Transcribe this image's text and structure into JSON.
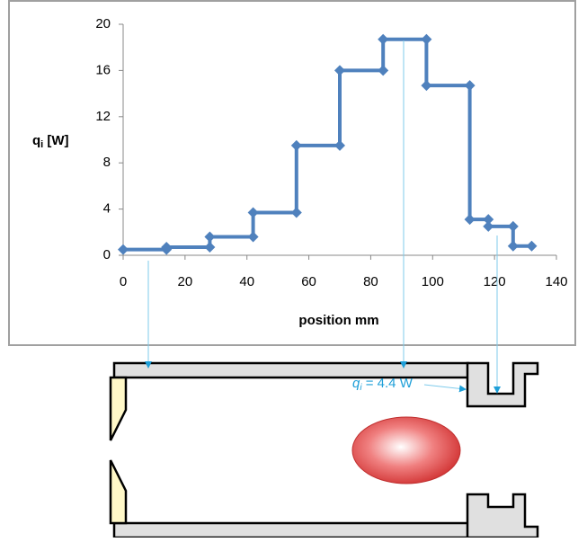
{
  "chart_data": {
    "type": "line",
    "x_label": "position mm",
    "y_label": {
      "main": "q",
      "sub": "i",
      "rest": " [W]"
    },
    "annotation": {
      "main": "q",
      "sub": "i",
      "rest": " = 4.4 W"
    },
    "series": [
      {
        "name": "q",
        "color": "#4f81bd",
        "x": [
          0,
          14,
          14,
          28,
          28,
          42,
          42,
          56,
          56,
          70,
          70,
          84,
          84,
          98,
          98,
          112,
          112,
          118,
          118,
          126,
          126,
          132
        ],
        "values": [
          0.5,
          0.5,
          0.7,
          0.7,
          1.6,
          1.6,
          3.7,
          3.7,
          9.5,
          9.5,
          16,
          16,
          18.7,
          18.7,
          14.7,
          14.7,
          3.1,
          3.1,
          2.5,
          2.5,
          0.8,
          0.8
        ]
      }
    ],
    "xlim": [
      0,
      140
    ],
    "xticks": [
      0,
      20,
      40,
      60,
      80,
      100,
      120,
      140
    ],
    "ylim": [
      0,
      20
    ],
    "yticks": [
      0,
      4,
      8,
      12,
      16,
      20
    ]
  }
}
